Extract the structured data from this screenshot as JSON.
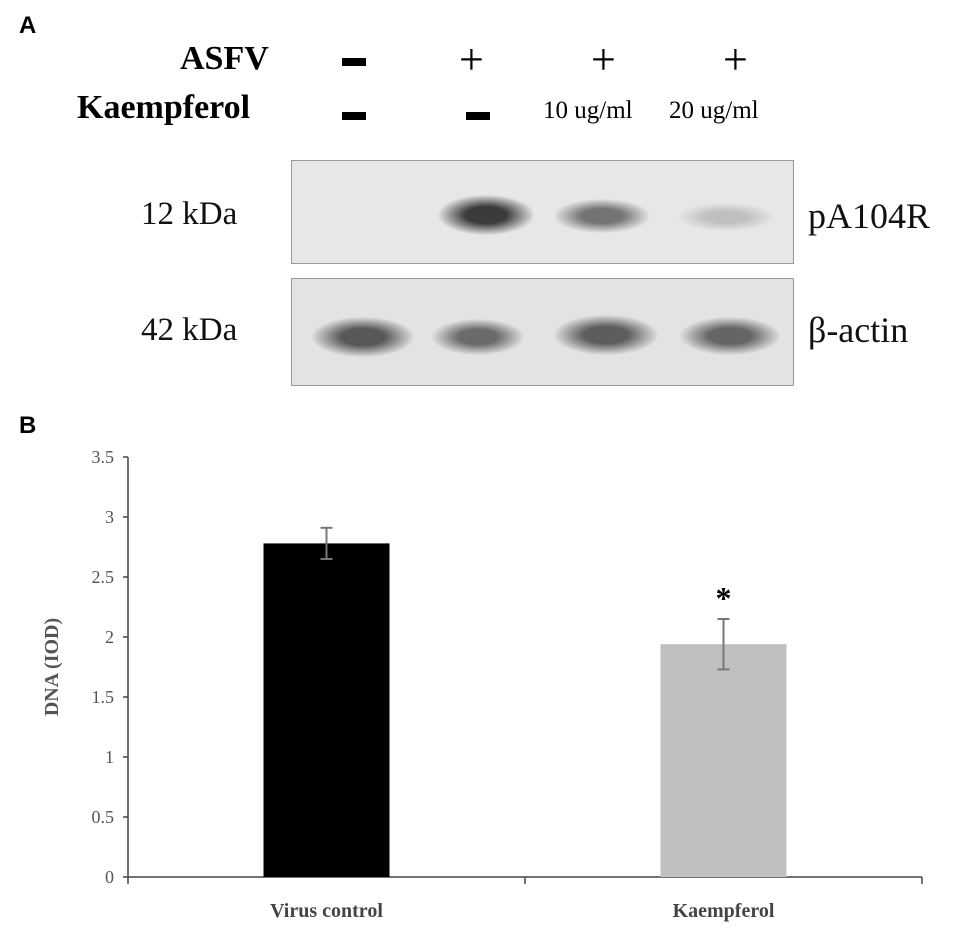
{
  "panel_a": {
    "letter": "A",
    "asfv_label": "ASFV",
    "kaempferol_label": "Kaempferol",
    "asfv_signs": [
      "−",
      "+",
      "+",
      "+"
    ],
    "kaempferol_signs": [
      "−",
      "−",
      "10 ug/ml",
      "20 ug/ml"
    ],
    "blot_top": {
      "mw_label": "12 kDa",
      "protein_label": "pA104R",
      "band_intensities": [
        0.0,
        0.9,
        0.6,
        0.2
      ]
    },
    "blot_bottom": {
      "mw_label": "42 kDa",
      "protein_label": "β-actin",
      "band_intensities": [
        0.75,
        0.65,
        0.72,
        0.68
      ]
    }
  },
  "panel_b": {
    "letter": "B"
  },
  "chart_data": {
    "type": "bar",
    "categories": [
      "Virus control",
      "Kaempferol"
    ],
    "values": [
      2.78,
      1.94
    ],
    "errors": [
      0.13,
      0.21
    ],
    "bar_colors": [
      "#000000",
      "#c0c0c0"
    ],
    "annotations": [
      "",
      "*"
    ],
    "ylabel": "DNA (IOD)",
    "ylim": [
      0,
      3.5
    ],
    "yticks": [
      "0",
      "0.5",
      "1",
      "1.5",
      "2",
      "2.5",
      "3",
      "3.5"
    ],
    "yticks_values": [
      0,
      0.5,
      1,
      1.5,
      2,
      2.5,
      3,
      3.5
    ],
    "grid": false
  }
}
